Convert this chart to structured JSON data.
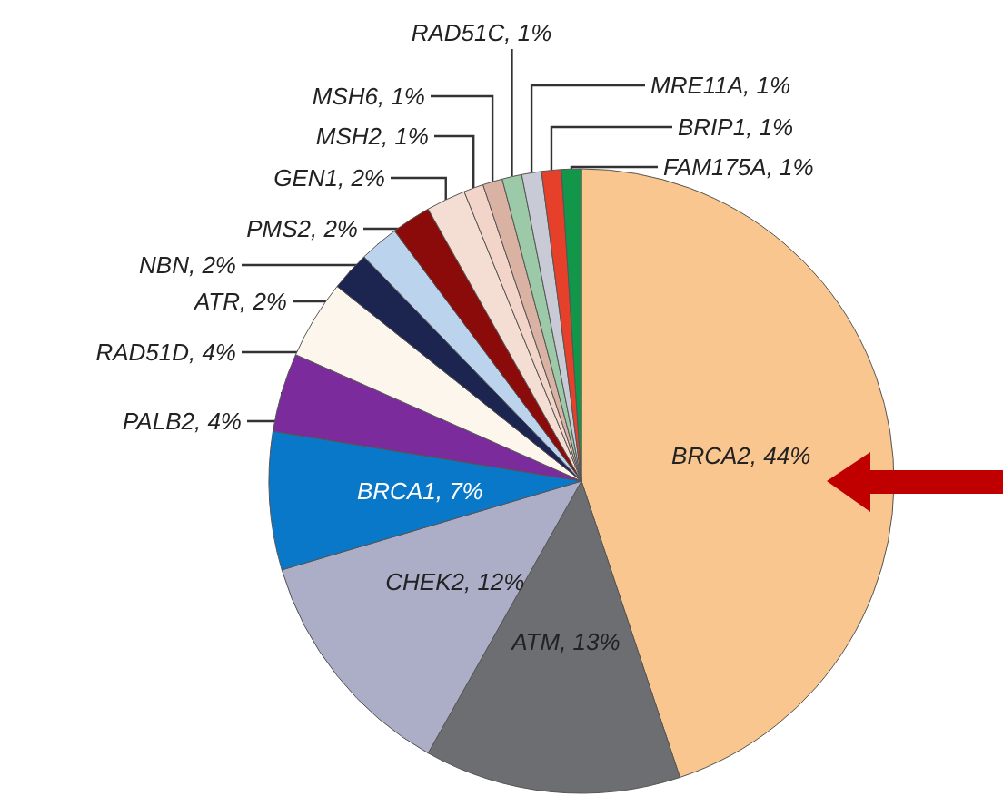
{
  "chart_data": {
    "type": "pie",
    "categories": [
      "BRCA2",
      "ATM",
      "CHEK2",
      "BRCA1",
      "PALB2",
      "RAD51D",
      "ATR",
      "NBN",
      "PMS2",
      "GEN1",
      "MSH2",
      "MSH6",
      "RAD51C",
      "MRE11A",
      "BRIP1",
      "FAM175A"
    ],
    "values": [
      44,
      13,
      12,
      7,
      4,
      4,
      2,
      2,
      2,
      2,
      1,
      1,
      1,
      1,
      1,
      1
    ],
    "value_labels": [
      "44%",
      "13%",
      "12%",
      "7%",
      "4%",
      "4%",
      "2%",
      "2%",
      "2%",
      "2%",
      "1%",
      "1%",
      "1%",
      "1%",
      "1%",
      "1%"
    ],
    "colors": [
      "#f8c68e",
      "#6d6e71",
      "#acaec8",
      "#0a78c8",
      "#7b2b9c",
      "#fdf6ec",
      "#1c2550",
      "#bcd3ee",
      "#8b0a0a",
      "#f4ddd2",
      "#f2d4c8",
      "#d9b2a4",
      "#9ccaa8",
      "#c8cbd5",
      "#e6402a",
      "#11964a"
    ]
  }
}
